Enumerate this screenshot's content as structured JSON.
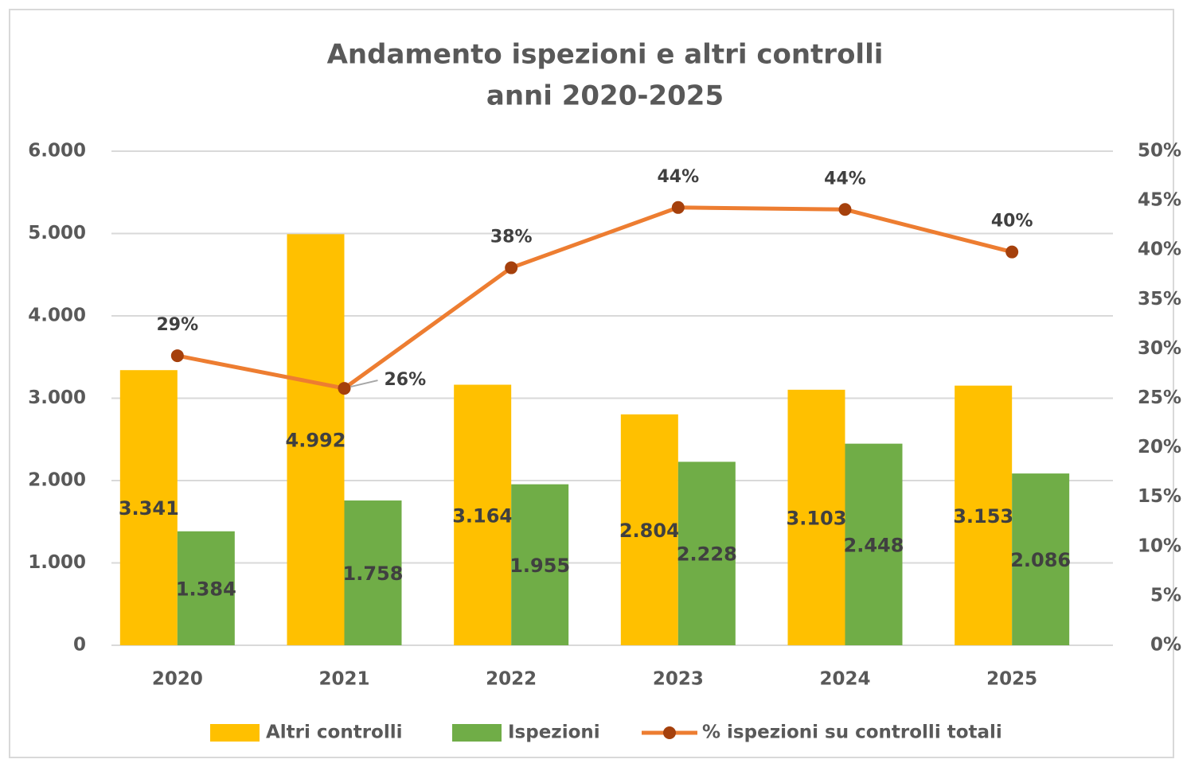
{
  "chart_data": {
    "type": "bar-line",
    "title": [
      "Andamento ispezioni e altri controlli",
      "anni 2020-2025"
    ],
    "categories": [
      "2020",
      "2021",
      "2022",
      "2023",
      "2024",
      "2025"
    ],
    "series": [
      {
        "name": "Altri controlli",
        "type": "bar",
        "color": "#FFC000",
        "values": [
          3341,
          4992,
          3164,
          2804,
          3103,
          3153
        ],
        "value_labels": [
          "3.341",
          "4.992",
          "3.164",
          "2.804",
          "3.103",
          "3.153"
        ]
      },
      {
        "name": "Ispezioni",
        "type": "bar",
        "color": "#70AD47",
        "values": [
          1384,
          1758,
          1955,
          2228,
          2448,
          2086
        ],
        "value_labels": [
          "1.384",
          "1.758",
          "1.955",
          "2.228",
          "2.448",
          "2.086"
        ]
      },
      {
        "name": "% ispezioni su controlli totali",
        "type": "line",
        "axis": "y2",
        "color": "#ED7D31",
        "marker_color": "#A5400C",
        "values": [
          29.3,
          26.0,
          38.2,
          44.3,
          44.1,
          39.8
        ],
        "value_labels": [
          "29%",
          "26%",
          "38%",
          "44%",
          "44%",
          "40%"
        ]
      }
    ],
    "ylim": [
      0,
      6000
    ],
    "yticks": [
      {
        "value": 0,
        "label": "0"
      },
      {
        "value": 1000,
        "label": "1.000"
      },
      {
        "value": 2000,
        "label": "2.000"
      },
      {
        "value": 3000,
        "label": "3.000"
      },
      {
        "value": 4000,
        "label": "4.000"
      },
      {
        "value": 5000,
        "label": "5.000"
      },
      {
        "value": 6000,
        "label": "6.000"
      }
    ],
    "y2lim": [
      0,
      50
    ],
    "y2ticks": [
      {
        "value": 0,
        "label": "0%"
      },
      {
        "value": 5,
        "label": "5%"
      },
      {
        "value": 10,
        "label": "10%"
      },
      {
        "value": 15,
        "label": "15%"
      },
      {
        "value": 20,
        "label": "20%"
      },
      {
        "value": 25,
        "label": "25%"
      },
      {
        "value": 30,
        "label": "30%"
      },
      {
        "value": 35,
        "label": "35%"
      },
      {
        "value": 40,
        "label": "40%"
      },
      {
        "value": 45,
        "label": "45%"
      },
      {
        "value": 50,
        "label": "50%"
      }
    ],
    "grid": true,
    "legend": "bottom"
  }
}
